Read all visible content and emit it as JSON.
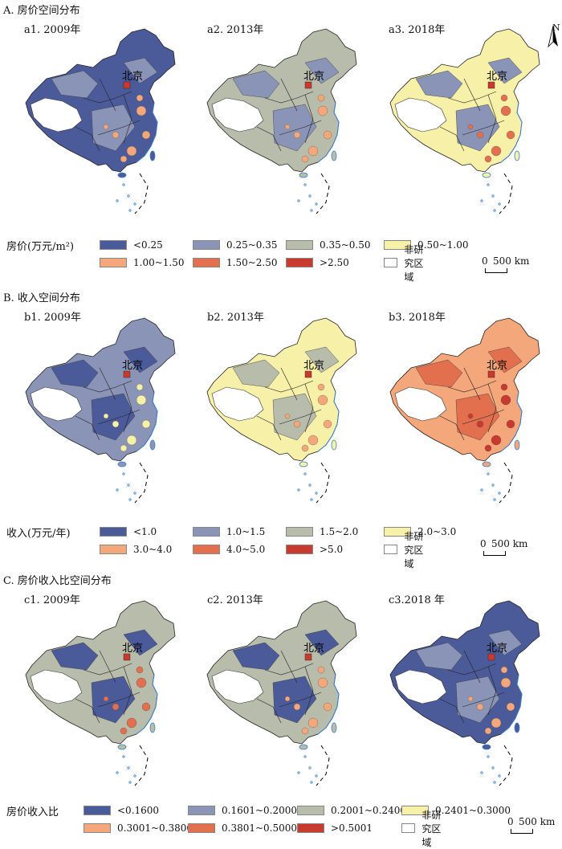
{
  "sections": {
    "A": {
      "title": "A. 房价空间分布",
      "maps": [
        "a1. 2009年",
        "a2. 2013年",
        "a3. 2018年"
      ],
      "legend_title": "房价(万元/m²)",
      "legend": [
        {
          "label": "<0.25",
          "color": "#4b5b9a"
        },
        {
          "label": "0.25~0.35",
          "color": "#8a94b6"
        },
        {
          "label": "0.35~0.50",
          "color": "#b8bcaa"
        },
        {
          "label": "0.50~1.00",
          "color": "#f6f0a8"
        },
        {
          "label": "1.00~1.50",
          "color": "#f3a77a"
        },
        {
          "label": "1.50~2.50",
          "color": "#e2704f"
        },
        {
          "label": ">2.50",
          "color": "#c93a2e"
        },
        {
          "label": "非研究区域",
          "color": "#ffffff"
        }
      ],
      "scale_zero": "0",
      "scale_dist": "500 km"
    },
    "B": {
      "title": "B. 收入空间分布",
      "maps": [
        "b1. 2009年",
        "b2. 2013年",
        "b3. 2018年"
      ],
      "legend_title": "收入(万元/年)",
      "legend": [
        {
          "label": "<1.0",
          "color": "#4b5b9a"
        },
        {
          "label": "1.0~1.5",
          "color": "#8a94b6"
        },
        {
          "label": "1.5~2.0",
          "color": "#b8bcaa"
        },
        {
          "label": "2.0~3.0",
          "color": "#f6f0a8"
        },
        {
          "label": "3.0~4.0",
          "color": "#f3a77a"
        },
        {
          "label": "4.0~5.0",
          "color": "#e2704f"
        },
        {
          "label": ">5.0",
          "color": "#c93a2e"
        },
        {
          "label": "非研究区域",
          "color": "#ffffff"
        }
      ],
      "scale_zero": "0",
      "scale_dist": "500 km"
    },
    "C": {
      "title": "C. 房价收入比空间分布",
      "maps": [
        "c1. 2009年",
        "c2. 2013年",
        "c3.2018 年"
      ],
      "legend_title": "房价收入比",
      "legend": [
        {
          "label": "<0.1600",
          "color": "#4b5b9a"
        },
        {
          "label": "0.1601~0.2000",
          "color": "#8a94b6"
        },
        {
          "label": "0.2001~0.2400",
          "color": "#b8bcaa"
        },
        {
          "label": "0.2401~0.3000",
          "color": "#f6f0a8"
        },
        {
          "label": "0.3001~0.3800",
          "color": "#f3a77a"
        },
        {
          "label": "0.3801~0.5000",
          "color": "#e2704f"
        },
        {
          "label": ">0.5001",
          "color": "#c93a2e"
        },
        {
          "label": "非研究区域",
          "color": "#ffffff"
        }
      ],
      "scale_zero": "0",
      "scale_dist": "500 km"
    }
  },
  "city_label": "北京",
  "north_label": "N",
  "maps_fill": {
    "A": [
      {
        "base": "#4b5b9a",
        "accent": "#8a94b6",
        "hot": "#f3a77a",
        "spot": "#c93a2e"
      },
      {
        "base": "#b8bcaa",
        "accent": "#8a94b6",
        "hot": "#f3a77a",
        "spot": "#c93a2e"
      },
      {
        "base": "#f6f0a8",
        "accent": "#8a94b6",
        "hot": "#e2704f",
        "spot": "#c93a2e"
      }
    ],
    "B": [
      {
        "base": "#8a94b6",
        "accent": "#4b5b9a",
        "hot": "#f6f0a8",
        "spot": "#c93a2e"
      },
      {
        "base": "#f6f0a8",
        "accent": "#b8bcaa",
        "hot": "#f3a77a",
        "spot": "#c93a2e"
      },
      {
        "base": "#f3a77a",
        "accent": "#e2704f",
        "hot": "#c93a2e",
        "spot": "#c93a2e"
      }
    ],
    "C": [
      {
        "base": "#b8bcaa",
        "accent": "#4b5b9a",
        "hot": "#e2704f",
        "spot": "#c93a2e"
      },
      {
        "base": "#b8bcaa",
        "accent": "#4b5b9a",
        "hot": "#f3a77a",
        "spot": "#c93a2e"
      },
      {
        "base": "#4b5b9a",
        "accent": "#8a94b6",
        "hot": "#f3a77a",
        "spot": "#c93a2e"
      }
    ]
  }
}
